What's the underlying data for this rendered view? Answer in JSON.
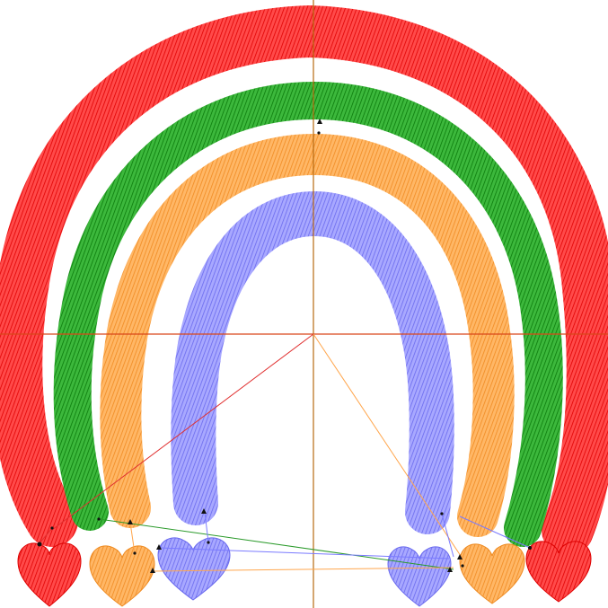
{
  "design": {
    "colors": {
      "red": "#ff2020",
      "green": "#1a9a1a",
      "orange": "#ffa040",
      "blue": "#8888ff",
      "axis": "#b86a10",
      "axis_horizontal": "#d9481a",
      "jump_red": "#e03030",
      "jump_green": "#2a9a2a",
      "jump_orange": "#ffa64d",
      "jump_blue": "#7a7aff"
    },
    "stitch_pattern": "satin",
    "arches": [
      {
        "name": "red-arch",
        "color_key": "red"
      },
      {
        "name": "green-arch",
        "color_key": "green"
      },
      {
        "name": "orange-arch",
        "color_key": "orange"
      },
      {
        "name": "blue-arch",
        "color_key": "blue"
      }
    ],
    "hearts": [
      {
        "name": "heart-red-left",
        "color_key": "red"
      },
      {
        "name": "heart-orange-left",
        "color_key": "orange"
      },
      {
        "name": "heart-blue-left",
        "color_key": "blue"
      },
      {
        "name": "heart-blue-right",
        "color_key": "blue"
      },
      {
        "name": "heart-orange-right",
        "color_key": "orange"
      },
      {
        "name": "heart-red-right",
        "color_key": "red"
      }
    ]
  }
}
